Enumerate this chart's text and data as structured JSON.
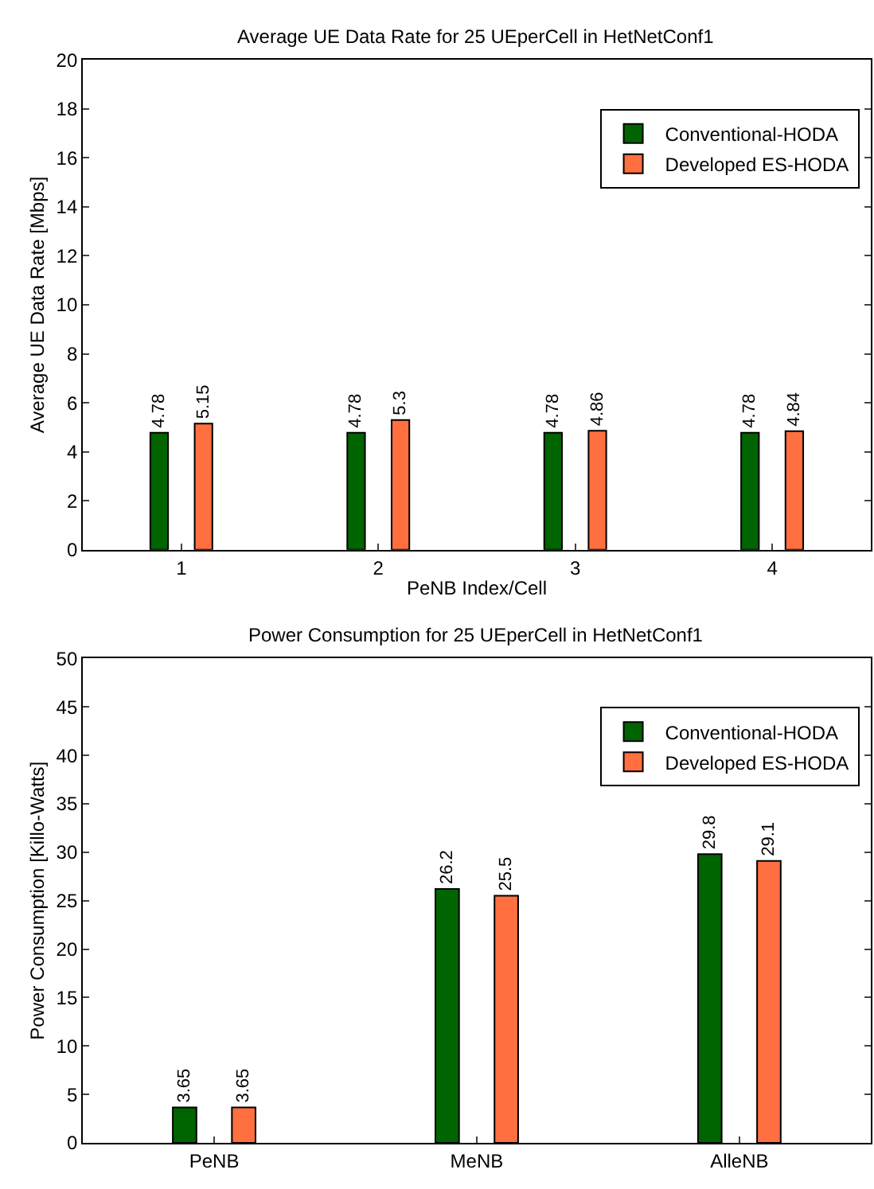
{
  "chart_data": [
    {
      "type": "bar",
      "title": "Average UE Data Rate for 25 UEperCell in HetNetConf1",
      "xlabel": "PeNB Index/Cell",
      "ylabel": "Average UE Data Rate [Mbps]",
      "categories": [
        "1",
        "2",
        "3",
        "4"
      ],
      "series": [
        {
          "name": "Conventional-HODA",
          "color": "#006400",
          "values": [
            4.78,
            4.78,
            4.78,
            4.78
          ]
        },
        {
          "name": "Developed ES-HODA",
          "color": "#ff6f40",
          "values": [
            5.15,
            5.3,
            4.86,
            4.84
          ]
        }
      ],
      "ylim": [
        0,
        20
      ],
      "yticks": [
        0,
        2,
        4,
        6,
        8,
        10,
        12,
        14,
        16,
        18,
        20
      ],
      "data_labels": true,
      "legend": "top right"
    },
    {
      "type": "bar",
      "title": "Power Consumption for 25 UEperCell in HetNetConf1",
      "ylabel": "Power Consumption [Killo-Watts]",
      "categories": [
        "PeNB",
        "MeNB",
        "AlleNB"
      ],
      "series": [
        {
          "name": "Conventional-HODA",
          "color": "#006400",
          "values": [
            3.65,
            26.2,
            29.8
          ]
        },
        {
          "name": "Developed ES-HODA",
          "color": "#ff6f40",
          "values": [
            3.65,
            25.5,
            29.1
          ]
        }
      ],
      "ylim": [
        0,
        50
      ],
      "yticks": [
        0,
        5,
        10,
        15,
        20,
        25,
        30,
        35,
        40,
        45,
        50
      ],
      "data_labels": true,
      "legend": "top right"
    }
  ]
}
